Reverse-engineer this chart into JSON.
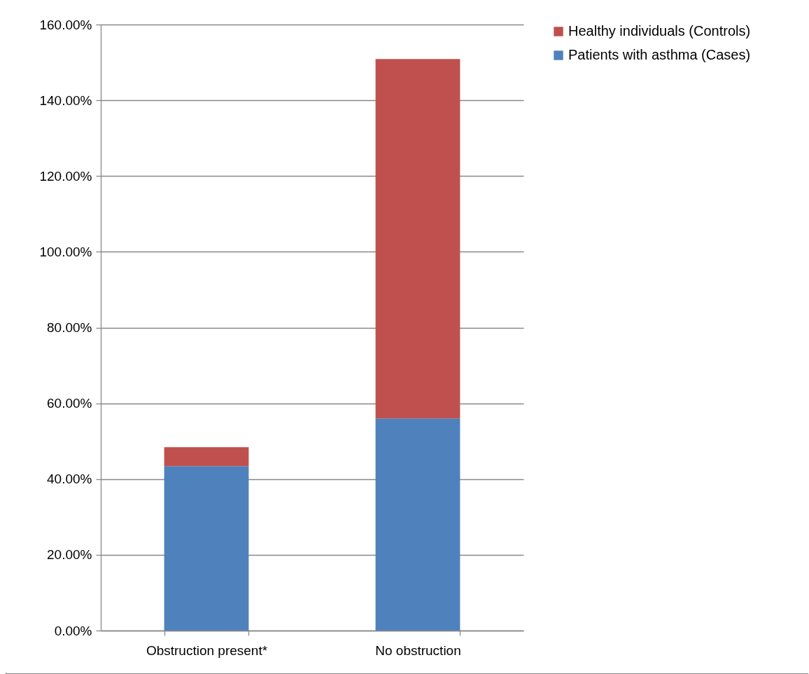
{
  "chart_data": {
    "type": "bar",
    "stacked": true,
    "categories": [
      "Obstruction present*",
      "No obstruction"
    ],
    "series": [
      {
        "name": "Patients with asthma (Cases)",
        "color": "#4f81bd",
        "values": [
          43.4,
          56.0
        ]
      },
      {
        "name": "Healthy individuals (Controls)",
        "color": "#c0504d",
        "values": [
          5.0,
          94.9
        ]
      }
    ],
    "ylim": [
      0,
      160
    ],
    "yticks": [
      {
        "value": 0,
        "label": "0.00%"
      },
      {
        "value": 20,
        "label": "20.00%"
      },
      {
        "value": 40,
        "label": "40.00%"
      },
      {
        "value": 60,
        "label": "60.00%"
      },
      {
        "value": 80,
        "label": "80.00%"
      },
      {
        "value": 100,
        "label": "100.00%"
      },
      {
        "value": 120,
        "label": "120.00%"
      },
      {
        "value": 140,
        "label": "140.00%"
      },
      {
        "value": 160,
        "label": "160.00%"
      }
    ],
    "grid": "y",
    "legend": "right"
  }
}
